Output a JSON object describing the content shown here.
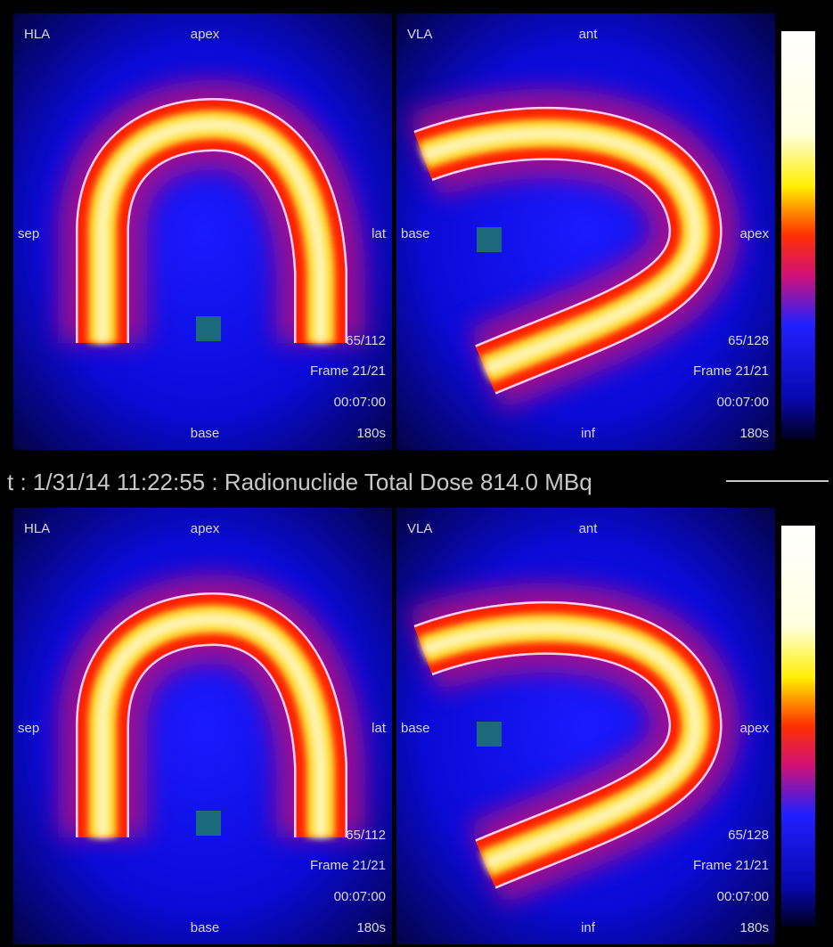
{
  "header": {
    "text": "t : 1/31/14 11:22:55 : Radionuclide Total Dose 814.0 MBq"
  },
  "panels": [
    {
      "view": "HLA",
      "top": "apex",
      "left": "sep",
      "right": "lat",
      "bottom": "base",
      "slice": "65/112",
      "frame": "Frame 21/21",
      "time": "00:07:00",
      "duration": "180s"
    },
    {
      "view": "VLA",
      "top": "ant",
      "left": "base",
      "right": "apex",
      "bottom": "inf",
      "slice": "65/128",
      "frame": "Frame 21/21",
      "time": "00:07:00",
      "duration": "180s"
    },
    {
      "view": "HLA",
      "top": "apex",
      "left": "sep",
      "right": "lat",
      "bottom": "base",
      "slice": "65/112",
      "frame": "Frame 21/21",
      "time": "00:07:00",
      "duration": "180s"
    },
    {
      "view": "VLA",
      "top": "ant",
      "left": "base",
      "right": "apex",
      "bottom": "inf",
      "slice": "65/128",
      "frame": "Frame 21/21",
      "time": "00:07:00",
      "duration": "180s"
    }
  ]
}
